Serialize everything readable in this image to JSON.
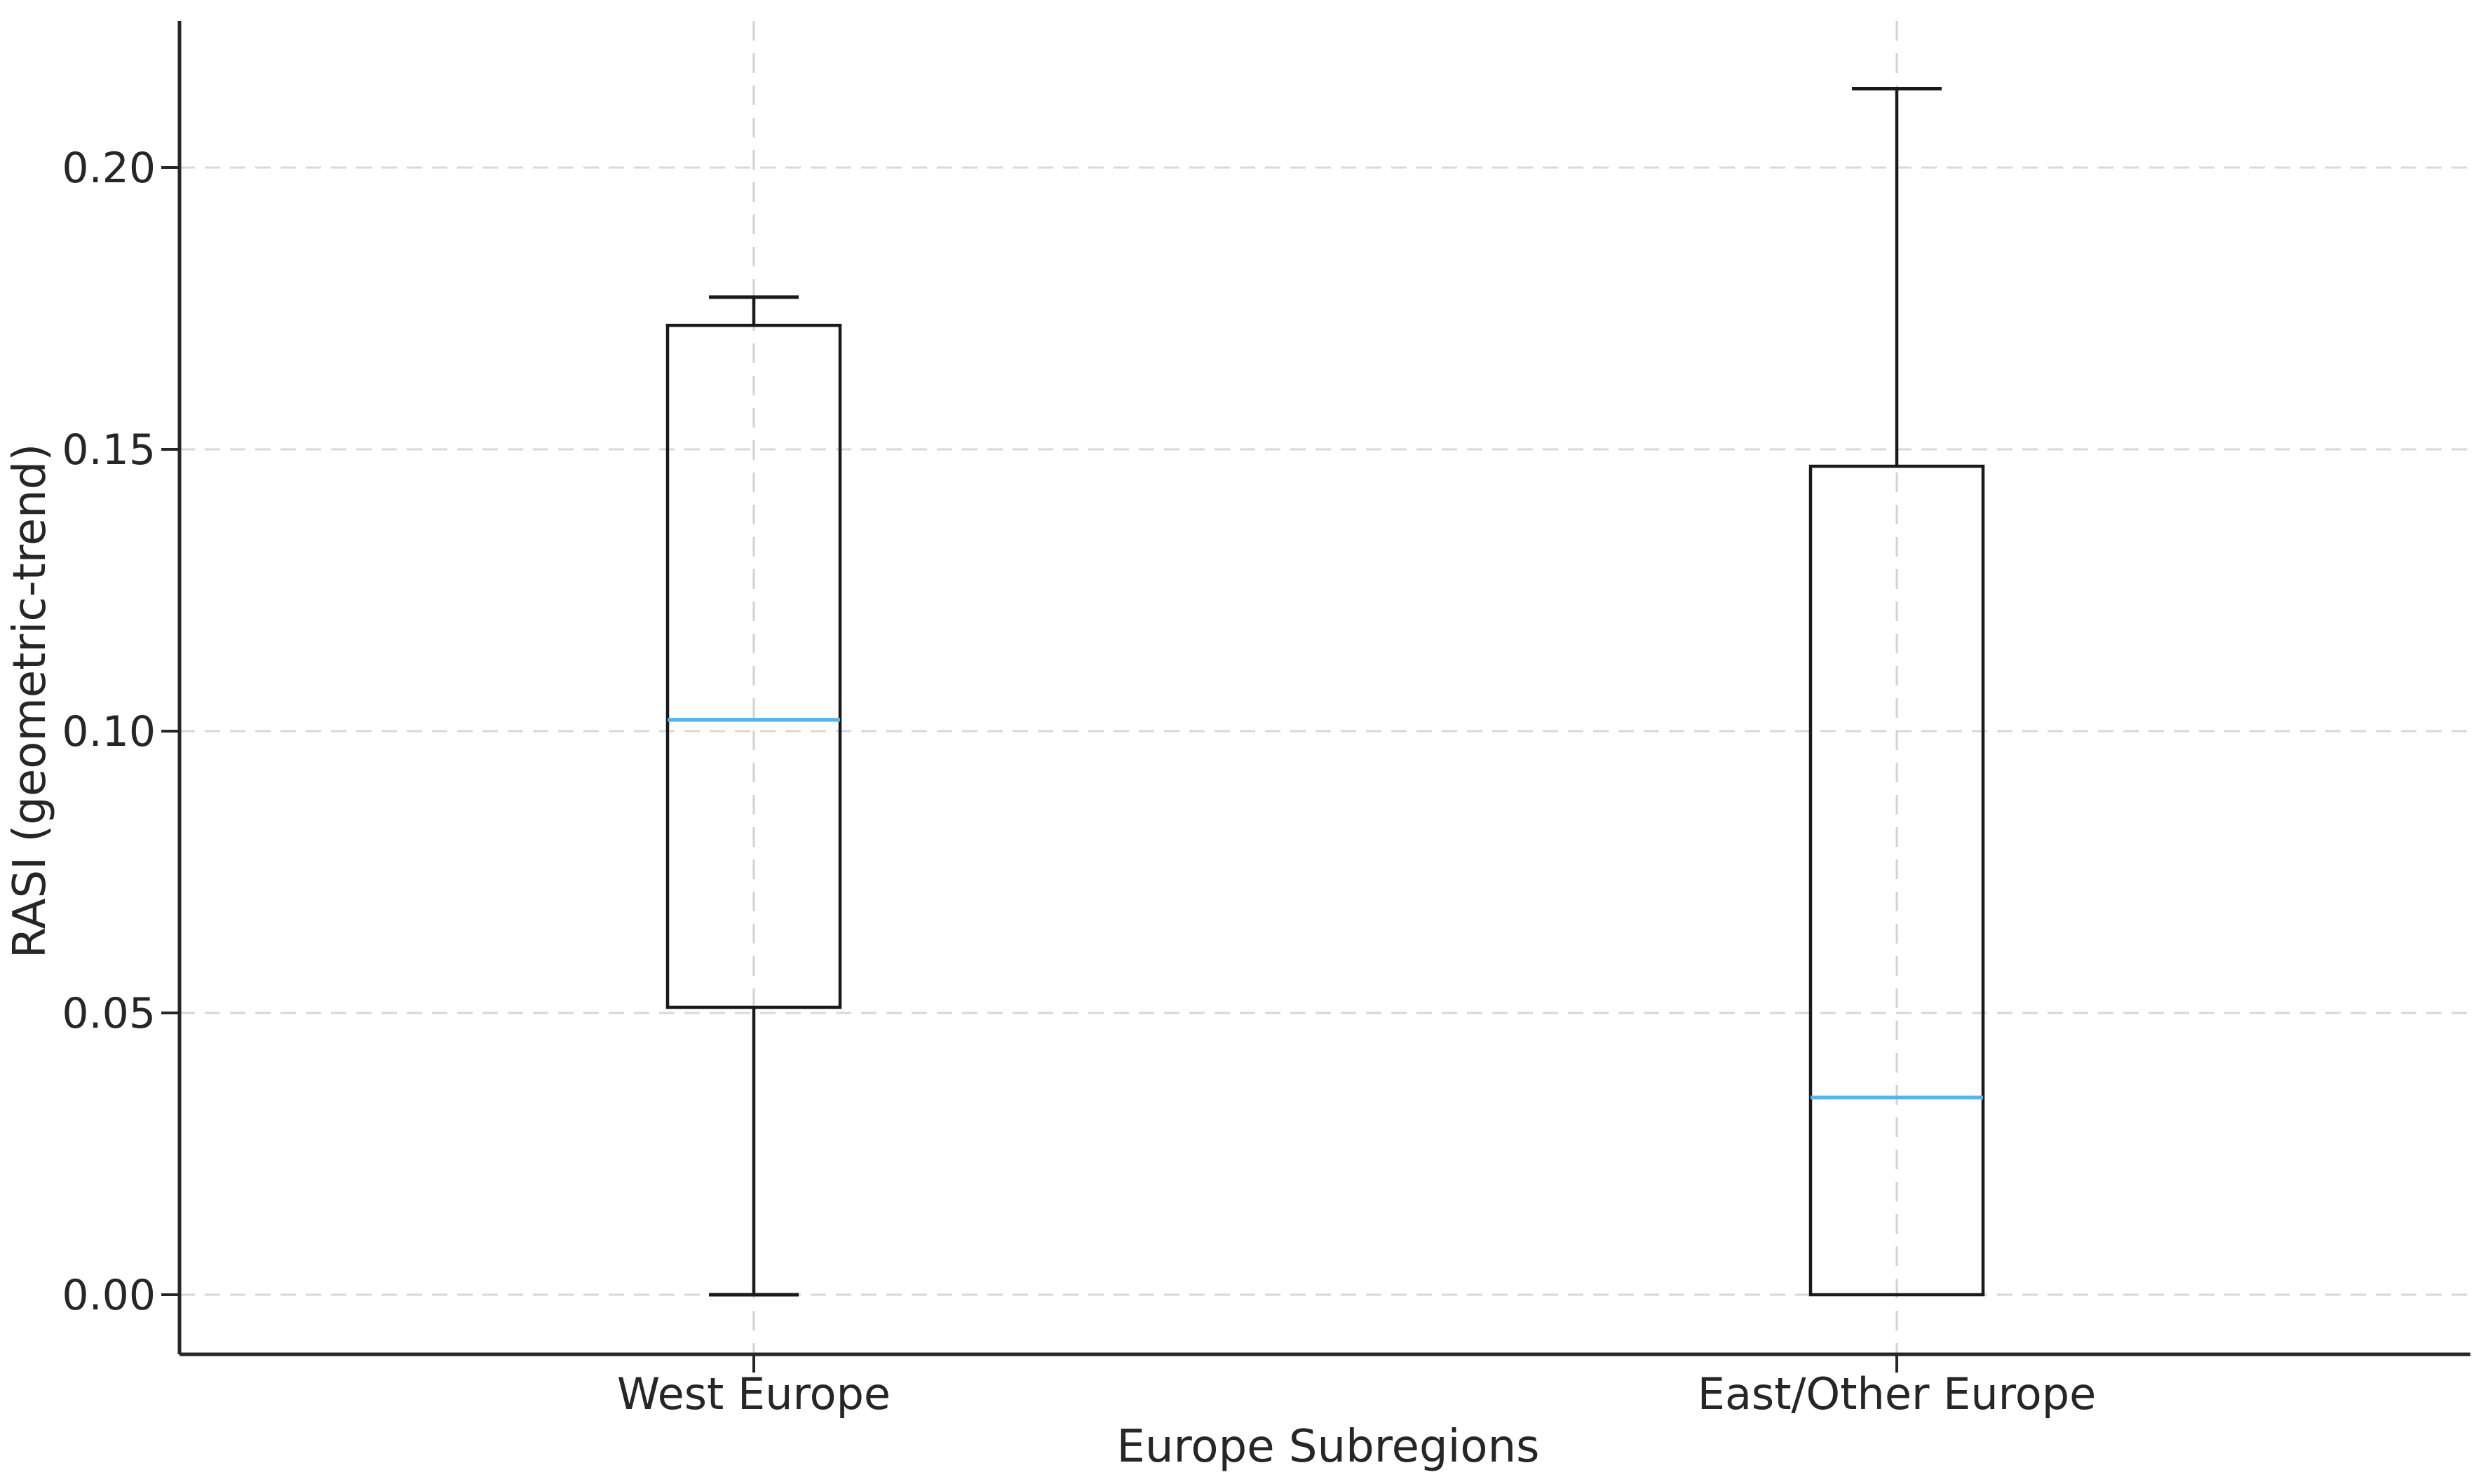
{
  "chart_data": {
    "type": "box",
    "title": "",
    "xlabel": "Europe Subregions",
    "ylabel": "RASI (geometric-trend)",
    "categories": [
      "West Europe",
      "East/Other Europe"
    ],
    "series": [
      {
        "name": "West Europe",
        "whisker_low": 0.0,
        "q1": 0.051,
        "median": 0.102,
        "q3": 0.172,
        "whisker_high": 0.177
      },
      {
        "name": "East/Other Europe",
        "whisker_low": 0.0,
        "q1": 0.0,
        "median": 0.035,
        "q3": 0.147,
        "whisker_high": 0.214
      }
    ],
    "yticks": [
      {
        "value": 0.0,
        "label": "0.00"
      },
      {
        "value": 0.05,
        "label": "0.05"
      },
      {
        "value": 0.1,
        "label": "0.10"
      },
      {
        "value": 0.15,
        "label": "0.15"
      },
      {
        "value": 0.2,
        "label": "0.20"
      }
    ],
    "ylim": [
      -0.011,
      0.226
    ],
    "grid": "dashed, both axes",
    "legend_position": "none",
    "colors": {
      "box_stroke": "#1a1a1a",
      "median": "#56b4e9",
      "grid_h": "#d8d8d8",
      "grid_v": "#d2d2d2",
      "spine": "#262626",
      "tick": "#262626",
      "text": "#262626",
      "background": "#ffffff"
    }
  }
}
